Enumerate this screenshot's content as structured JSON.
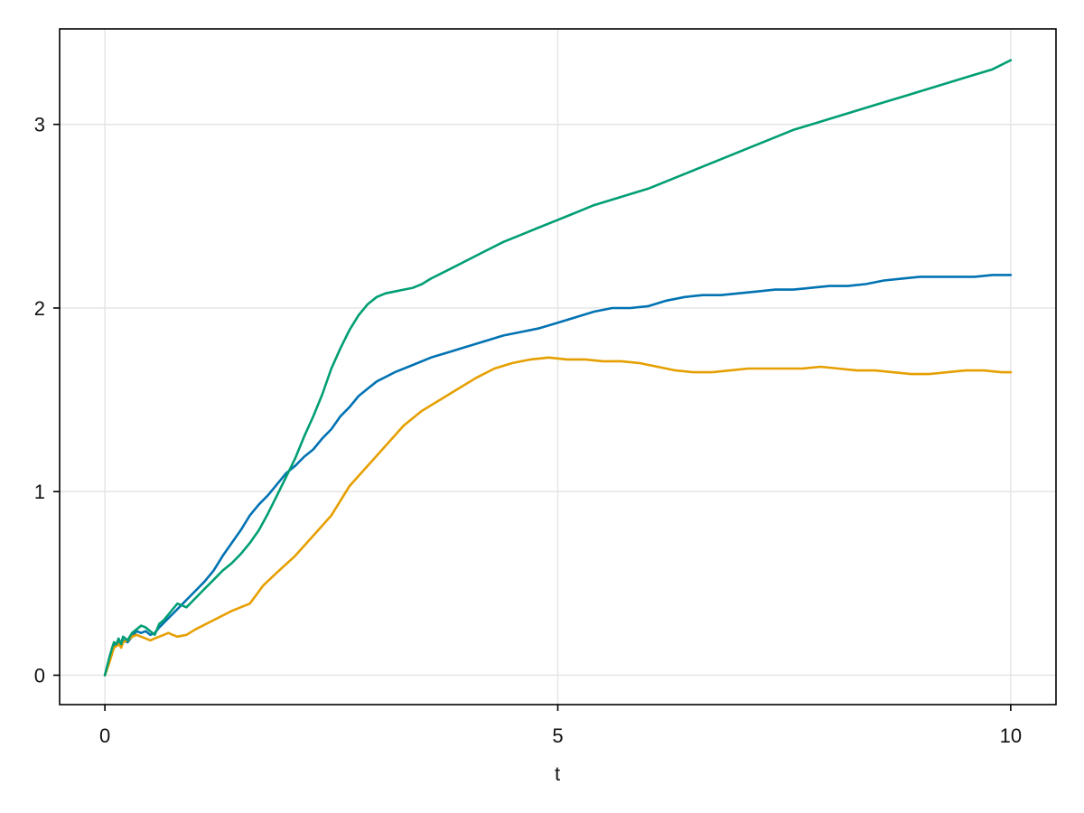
{
  "chart_data": {
    "type": "line",
    "title": "",
    "xlabel": "t",
    "ylabel": "",
    "xlim": [
      -0.5,
      10.5
    ],
    "ylim": [
      -0.16,
      3.52
    ],
    "grid": true,
    "legend": "none",
    "x_ticks": [
      0,
      5,
      10
    ],
    "x_tick_labels": [
      "0",
      "5",
      "10"
    ],
    "y_ticks": [
      0,
      1,
      2,
      3
    ],
    "y_tick_labels": [
      "0",
      "1",
      "2",
      "3"
    ],
    "series": [
      {
        "color": "#0072b2",
        "points": [
          [
            0,
            0
          ],
          [
            0.05,
            0.08
          ],
          [
            0.08,
            0.13
          ],
          [
            0.1,
            0.16
          ],
          [
            0.13,
            0.17
          ],
          [
            0.15,
            0.19
          ],
          [
            0.18,
            0.17
          ],
          [
            0.2,
            0.19
          ],
          [
            0.25,
            0.18
          ],
          [
            0.3,
            0.21
          ],
          [
            0.35,
            0.24
          ],
          [
            0.4,
            0.23
          ],
          [
            0.45,
            0.24
          ],
          [
            0.5,
            0.22
          ],
          [
            0.55,
            0.23
          ],
          [
            0.6,
            0.26
          ],
          [
            0.7,
            0.31
          ],
          [
            0.8,
            0.36
          ],
          [
            0.9,
            0.41
          ],
          [
            1.0,
            0.46
          ],
          [
            1.1,
            0.51
          ],
          [
            1.2,
            0.57
          ],
          [
            1.3,
            0.65
          ],
          [
            1.4,
            0.72
          ],
          [
            1.5,
            0.79
          ],
          [
            1.6,
            0.87
          ],
          [
            1.7,
            0.93
          ],
          [
            1.8,
            0.98
          ],
          [
            1.9,
            1.04
          ],
          [
            2.0,
            1.1
          ],
          [
            2.1,
            1.14
          ],
          [
            2.2,
            1.19
          ],
          [
            2.3,
            1.23
          ],
          [
            2.4,
            1.29
          ],
          [
            2.5,
            1.34
          ],
          [
            2.6,
            1.41
          ],
          [
            2.7,
            1.46
          ],
          [
            2.8,
            1.52
          ],
          [
            2.9,
            1.56
          ],
          [
            3.0,
            1.6
          ],
          [
            3.2,
            1.65
          ],
          [
            3.4,
            1.69
          ],
          [
            3.6,
            1.73
          ],
          [
            3.8,
            1.76
          ],
          [
            4.0,
            1.79
          ],
          [
            4.2,
            1.82
          ],
          [
            4.4,
            1.85
          ],
          [
            4.6,
            1.87
          ],
          [
            4.8,
            1.89
          ],
          [
            5.0,
            1.92
          ],
          [
            5.2,
            1.95
          ],
          [
            5.4,
            1.98
          ],
          [
            5.6,
            2.0
          ],
          [
            5.8,
            2.0
          ],
          [
            6.0,
            2.01
          ],
          [
            6.2,
            2.04
          ],
          [
            6.4,
            2.06
          ],
          [
            6.6,
            2.07
          ],
          [
            6.8,
            2.07
          ],
          [
            7.0,
            2.08
          ],
          [
            7.2,
            2.09
          ],
          [
            7.4,
            2.1
          ],
          [
            7.6,
            2.1
          ],
          [
            7.8,
            2.11
          ],
          [
            8.0,
            2.12
          ],
          [
            8.2,
            2.12
          ],
          [
            8.4,
            2.13
          ],
          [
            8.6,
            2.15
          ],
          [
            8.8,
            2.16
          ],
          [
            9.0,
            2.17
          ],
          [
            9.2,
            2.17
          ],
          [
            9.4,
            2.17
          ],
          [
            9.6,
            2.17
          ],
          [
            9.8,
            2.18
          ],
          [
            10.0,
            2.18
          ]
        ]
      },
      {
        "color": "#e69f00",
        "points": [
          [
            0,
            0
          ],
          [
            0.05,
            0.07
          ],
          [
            0.08,
            0.12
          ],
          [
            0.1,
            0.15
          ],
          [
            0.13,
            0.16
          ],
          [
            0.15,
            0.17
          ],
          [
            0.18,
            0.15
          ],
          [
            0.2,
            0.18
          ],
          [
            0.25,
            0.19
          ],
          [
            0.3,
            0.21
          ],
          [
            0.35,
            0.22
          ],
          [
            0.4,
            0.21
          ],
          [
            0.45,
            0.2
          ],
          [
            0.5,
            0.19
          ],
          [
            0.55,
            0.2
          ],
          [
            0.6,
            0.21
          ],
          [
            0.65,
            0.22
          ],
          [
            0.7,
            0.23
          ],
          [
            0.75,
            0.22
          ],
          [
            0.8,
            0.21
          ],
          [
            0.9,
            0.22
          ],
          [
            1.0,
            0.25
          ],
          [
            1.2,
            0.3
          ],
          [
            1.4,
            0.35
          ],
          [
            1.6,
            0.39
          ],
          [
            1.75,
            0.49
          ],
          [
            1.9,
            0.56
          ],
          [
            2.1,
            0.65
          ],
          [
            2.3,
            0.76
          ],
          [
            2.5,
            0.87
          ],
          [
            2.7,
            1.03
          ],
          [
            2.9,
            1.14
          ],
          [
            3.1,
            1.25
          ],
          [
            3.3,
            1.36
          ],
          [
            3.5,
            1.44
          ],
          [
            3.7,
            1.5
          ],
          [
            3.9,
            1.56
          ],
          [
            4.1,
            1.62
          ],
          [
            4.3,
            1.67
          ],
          [
            4.5,
            1.7
          ],
          [
            4.7,
            1.72
          ],
          [
            4.9,
            1.73
          ],
          [
            5.1,
            1.72
          ],
          [
            5.3,
            1.72
          ],
          [
            5.5,
            1.71
          ],
          [
            5.7,
            1.71
          ],
          [
            5.9,
            1.7
          ],
          [
            6.1,
            1.68
          ],
          [
            6.3,
            1.66
          ],
          [
            6.5,
            1.65
          ],
          [
            6.7,
            1.65
          ],
          [
            6.9,
            1.66
          ],
          [
            7.1,
            1.67
          ],
          [
            7.3,
            1.67
          ],
          [
            7.5,
            1.67
          ],
          [
            7.7,
            1.67
          ],
          [
            7.9,
            1.68
          ],
          [
            8.1,
            1.67
          ],
          [
            8.3,
            1.66
          ],
          [
            8.5,
            1.66
          ],
          [
            8.7,
            1.65
          ],
          [
            8.9,
            1.64
          ],
          [
            9.1,
            1.64
          ],
          [
            9.3,
            1.65
          ],
          [
            9.5,
            1.66
          ],
          [
            9.7,
            1.66
          ],
          [
            9.9,
            1.65
          ],
          [
            10.0,
            1.65
          ]
        ]
      },
      {
        "color": "#009e73",
        "points": [
          [
            0,
            0
          ],
          [
            0.05,
            0.1
          ],
          [
            0.08,
            0.15
          ],
          [
            0.1,
            0.18
          ],
          [
            0.13,
            0.17
          ],
          [
            0.15,
            0.2
          ],
          [
            0.18,
            0.17
          ],
          [
            0.2,
            0.21
          ],
          [
            0.25,
            0.19
          ],
          [
            0.3,
            0.23
          ],
          [
            0.35,
            0.25
          ],
          [
            0.4,
            0.27
          ],
          [
            0.45,
            0.26
          ],
          [
            0.5,
            0.24
          ],
          [
            0.55,
            0.22
          ],
          [
            0.6,
            0.28
          ],
          [
            0.65,
            0.3
          ],
          [
            0.7,
            0.33
          ],
          [
            0.75,
            0.36
          ],
          [
            0.8,
            0.39
          ],
          [
            0.85,
            0.38
          ],
          [
            0.9,
            0.37
          ],
          [
            1.0,
            0.42
          ],
          [
            1.1,
            0.47
          ],
          [
            1.2,
            0.52
          ],
          [
            1.3,
            0.57
          ],
          [
            1.4,
            0.61
          ],
          [
            1.5,
            0.66
          ],
          [
            1.6,
            0.72
          ],
          [
            1.7,
            0.79
          ],
          [
            1.8,
            0.88
          ],
          [
            1.9,
            0.98
          ],
          [
            2.0,
            1.08
          ],
          [
            2.1,
            1.18
          ],
          [
            2.2,
            1.3
          ],
          [
            2.3,
            1.41
          ],
          [
            2.4,
            1.53
          ],
          [
            2.5,
            1.67
          ],
          [
            2.6,
            1.78
          ],
          [
            2.7,
            1.88
          ],
          [
            2.8,
            1.96
          ],
          [
            2.9,
            2.02
          ],
          [
            3.0,
            2.06
          ],
          [
            3.1,
            2.08
          ],
          [
            3.2,
            2.09
          ],
          [
            3.3,
            2.1
          ],
          [
            3.4,
            2.11
          ],
          [
            3.5,
            2.13
          ],
          [
            3.6,
            2.16
          ],
          [
            3.8,
            2.21
          ],
          [
            4.0,
            2.26
          ],
          [
            4.2,
            2.31
          ],
          [
            4.4,
            2.36
          ],
          [
            4.6,
            2.4
          ],
          [
            4.8,
            2.44
          ],
          [
            5.0,
            2.48
          ],
          [
            5.2,
            2.52
          ],
          [
            5.4,
            2.56
          ],
          [
            5.6,
            2.59
          ],
          [
            5.8,
            2.62
          ],
          [
            6.0,
            2.65
          ],
          [
            6.2,
            2.69
          ],
          [
            6.4,
            2.73
          ],
          [
            6.6,
            2.77
          ],
          [
            6.8,
            2.81
          ],
          [
            7.0,
            2.85
          ],
          [
            7.2,
            2.89
          ],
          [
            7.4,
            2.93
          ],
          [
            7.6,
            2.97
          ],
          [
            7.8,
            3.0
          ],
          [
            8.0,
            3.03
          ],
          [
            8.2,
            3.06
          ],
          [
            8.4,
            3.09
          ],
          [
            8.6,
            3.12
          ],
          [
            8.8,
            3.15
          ],
          [
            9.0,
            3.18
          ],
          [
            9.2,
            3.21
          ],
          [
            9.4,
            3.24
          ],
          [
            9.6,
            3.27
          ],
          [
            9.8,
            3.3
          ],
          [
            10.0,
            3.35
          ]
        ]
      }
    ]
  }
}
